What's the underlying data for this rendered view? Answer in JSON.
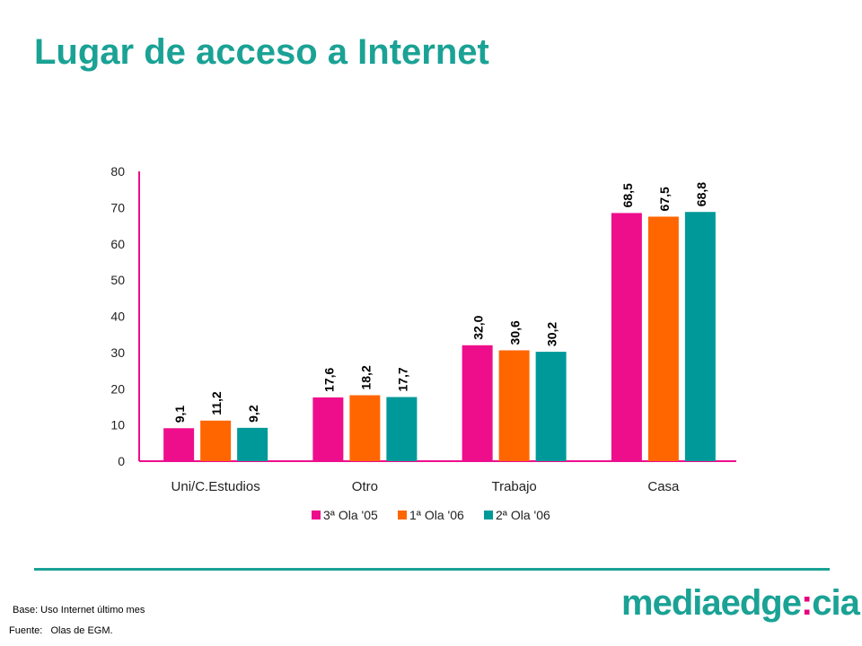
{
  "page": {
    "title": "Lugar de acceso a Internet",
    "base_note": "Base: Uso Internet último mes",
    "source_label": "Fuente:",
    "source_text": "Olas de EGM.",
    "logo_left": "mediaedge",
    "logo_sep": ":",
    "logo_right": "cia"
  },
  "chart_data": {
    "type": "bar",
    "categories": [
      "Uni/C.Estudios",
      "Otro",
      "Trabajo",
      "Casa"
    ],
    "series": [
      {
        "name": "3ª Ola '05",
        "values": [
          9.1,
          17.6,
          32.0,
          68.5
        ],
        "labels": [
          "9,1",
          "17,6",
          "32,0",
          "68,5"
        ],
        "color": "#ee0e8c"
      },
      {
        "name": "1ª Ola '06",
        "values": [
          11.2,
          18.2,
          30.6,
          67.5
        ],
        "labels": [
          "11,2",
          "18,2",
          "30,6",
          "67,5"
        ],
        "color": "#ff6600"
      },
      {
        "name": "2ª Ola '06",
        "values": [
          9.2,
          17.7,
          30.2,
          68.8
        ],
        "labels": [
          "9,2",
          "17,7",
          "30,2",
          "68,8"
        ],
        "color": "#009999"
      }
    ],
    "ylim": [
      0,
      80
    ],
    "yticks": [
      0,
      10,
      20,
      30,
      40,
      50,
      60,
      70,
      80
    ],
    "grid": false,
    "legend_position": "bottom",
    "axis_color": "#ee0e8c",
    "title": "",
    "xlabel": "",
    "ylabel": ""
  }
}
